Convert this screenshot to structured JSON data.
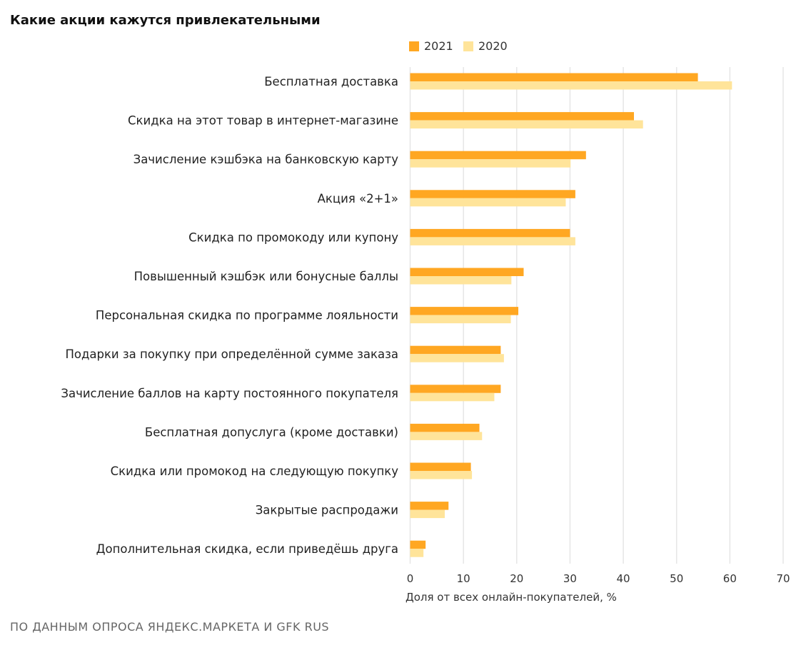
{
  "chart_data": {
    "type": "bar",
    "orientation": "horizontal",
    "title": "Какие акции кажутся привлекательными",
    "xlabel": "Доля от всех онлайн-покупателей, %",
    "ylabel": "",
    "xlim": [
      0,
      70
    ],
    "xticks": [
      0,
      10,
      20,
      30,
      40,
      50,
      60,
      70
    ],
    "grid": true,
    "legend_position": "top",
    "categories": [
      "Бесплатная доставка",
      "Скидка на этот товар в интернет-магазине",
      "Зачисление кэшбэка на банковскую карту",
      "Акция «2+1»",
      "Скидка по промокоду или купону",
      "Повышенный кэшбэк или бонусные баллы",
      "Персональная скидка по программе лояльности",
      "Подарки за покупку при определённой сумме заказа",
      "Зачисление баллов на карту постоянного покупателя",
      "Бесплатная допуслуга (кроме доставки)",
      "Скидка или промокод на следующую покупку",
      "Закрытые распродажи",
      "Дополнительная скидка, если приведёшь друга"
    ],
    "series": [
      {
        "name": "2021",
        "color": "#FFA722",
        "values": [
          54,
          42,
          33,
          31,
          30,
          21.3,
          20.3,
          17,
          17,
          13,
          11.4,
          7.2,
          2.9
        ]
      },
      {
        "name": "2020",
        "color": "#FFE49A",
        "values": [
          60.4,
          43.7,
          30.1,
          29.2,
          31,
          19,
          18.9,
          17.6,
          15.8,
          13.5,
          11.6,
          6.5,
          2.5
        ]
      }
    ],
    "source": "ПО ДАННЫМ ОПРОСА ЯНДЕКС.МАРКЕТА И GFK RUS"
  }
}
